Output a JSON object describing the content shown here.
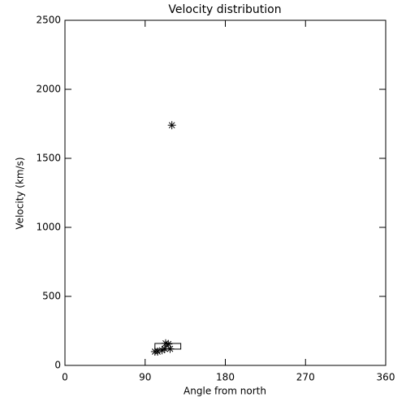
{
  "chart_data": {
    "type": "scatter",
    "title": "Velocity distribution",
    "x_label": "Angle from north",
    "y_label": "Velocity (km/s)",
    "x": [
      120,
      101,
      104,
      109,
      112,
      113,
      116,
      118
    ],
    "y": [
      1740,
      100,
      100,
      110,
      120,
      160,
      155,
      120
    ],
    "box_x": [
      101,
      130
    ],
    "box_y": [
      118,
      159
    ],
    "color": "#000000",
    "xlim": [
      0,
      360
    ],
    "xticks": [
      0,
      90,
      180,
      270,
      360
    ],
    "ylim": [
      0,
      2500
    ],
    "yticks": [
      0,
      500,
      1000,
      1500,
      2000,
      2500
    ]
  }
}
